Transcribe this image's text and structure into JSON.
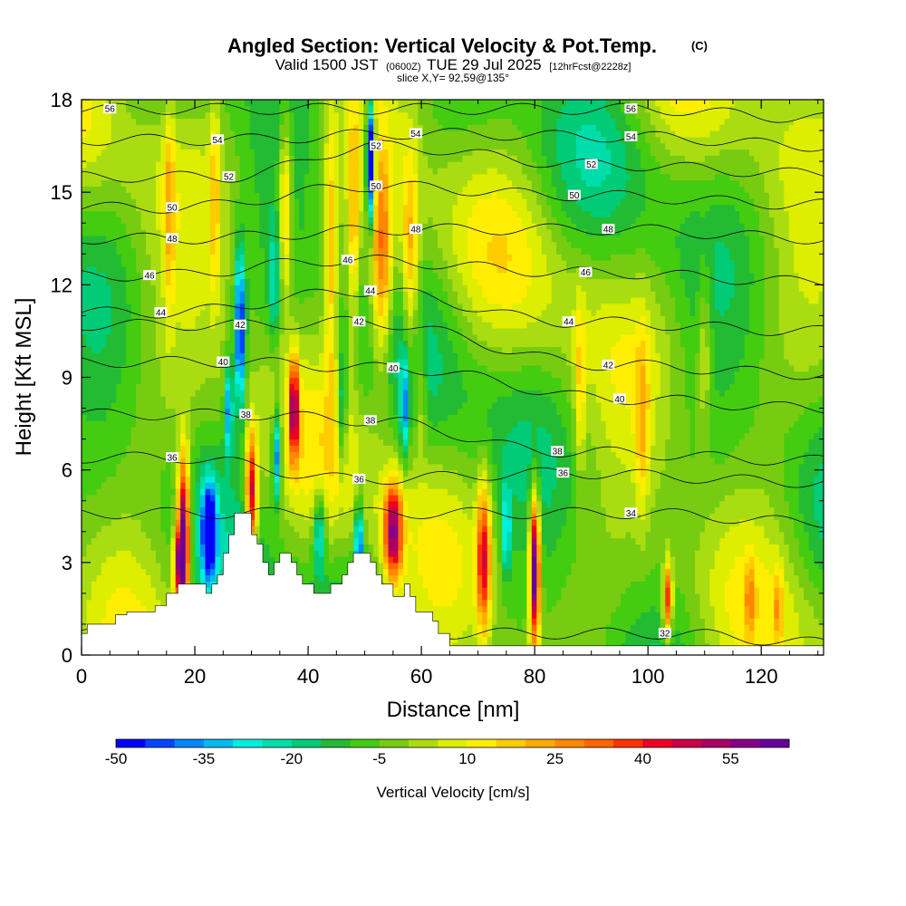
{
  "chart_data": {
    "type": "heatmap",
    "title": "Angled Section: Vertical Velocity & Pot.Temp.",
    "title_units": "(C)",
    "subtitle": {
      "prefix": "Valid 1500 JST",
      "zulu": "(0600Z)",
      "date": "TUE 29 Jul 2025",
      "forecast": "[12hrFcst@2228z]"
    },
    "slice_label": "slice X,Y= 92,59@135°",
    "xlabel": "Distance [nm]",
    "ylabel": "Height [Kft MSL]",
    "xlim": [
      0,
      131
    ],
    "ylim": [
      0,
      18
    ],
    "x_ticks": [
      "0",
      "20",
      "40",
      "60",
      "80",
      "100",
      "120"
    ],
    "y_ticks": [
      "0",
      "3",
      "6",
      "9",
      "12",
      "15",
      "18"
    ],
    "colorbar": {
      "title": "Vertical Velocity [cm/s]",
      "min": -50,
      "max": 65,
      "step": 5,
      "labels": [
        "-50",
        "-35",
        "-20",
        "-5",
        "10",
        "25",
        "40",
        "55"
      ],
      "colors": [
        "#0000ff",
        "#0044ff",
        "#0088ff",
        "#00bbee",
        "#00eedd",
        "#00ddaa",
        "#00cc77",
        "#22bb33",
        "#44cc11",
        "#77cc11",
        "#aadd11",
        "#ddee00",
        "#ffee00",
        "#ffcc00",
        "#ffaa00",
        "#ff8800",
        "#ff6600",
        "#ff3300",
        "#ee0022",
        "#cc0044",
        "#aa0066",
        "#880088",
        "#660099"
      ]
    },
    "contours": {
      "variable": "Potential temperature (C)",
      "labels": [
        {
          "x": 5,
          "y": 17.7,
          "text": "56"
        },
        {
          "x": 97,
          "y": 17.7,
          "text": "56"
        },
        {
          "x": 24,
          "y": 16.7,
          "text": "54"
        },
        {
          "x": 59,
          "y": 16.9,
          "text": "54"
        },
        {
          "x": 97,
          "y": 16.8,
          "text": "54"
        },
        {
          "x": 52,
          "y": 16.5,
          "text": "52"
        },
        {
          "x": 26,
          "y": 15.5,
          "text": "52"
        },
        {
          "x": 90,
          "y": 15.9,
          "text": "52"
        },
        {
          "x": 52,
          "y": 15.2,
          "text": "50"
        },
        {
          "x": 16,
          "y": 14.5,
          "text": "50"
        },
        {
          "x": 87,
          "y": 14.9,
          "text": "50"
        },
        {
          "x": 59,
          "y": 13.8,
          "text": "48"
        },
        {
          "x": 16,
          "y": 13.5,
          "text": "48"
        },
        {
          "x": 93,
          "y": 13.8,
          "text": "48"
        },
        {
          "x": 47,
          "y": 12.8,
          "text": "46"
        },
        {
          "x": 12,
          "y": 12.3,
          "text": "46"
        },
        {
          "x": 89,
          "y": 12.4,
          "text": "46"
        },
        {
          "x": 51,
          "y": 11.8,
          "text": "44"
        },
        {
          "x": 14,
          "y": 11.1,
          "text": "44"
        },
        {
          "x": 86,
          "y": 10.8,
          "text": "44"
        },
        {
          "x": 28,
          "y": 10.7,
          "text": "42"
        },
        {
          "x": 49,
          "y": 10.8,
          "text": "42"
        },
        {
          "x": 93,
          "y": 9.4,
          "text": "42"
        },
        {
          "x": 25,
          "y": 9.5,
          "text": "40"
        },
        {
          "x": 55,
          "y": 9.3,
          "text": "40"
        },
        {
          "x": 95,
          "y": 8.3,
          "text": "40"
        },
        {
          "x": 29,
          "y": 7.8,
          "text": "38"
        },
        {
          "x": 51,
          "y": 7.6,
          "text": "38"
        },
        {
          "x": 84,
          "y": 6.6,
          "text": "38"
        },
        {
          "x": 16,
          "y": 6.4,
          "text": "36"
        },
        {
          "x": 49,
          "y": 5.7,
          "text": "36"
        },
        {
          "x": 85,
          "y": 5.9,
          "text": "36"
        },
        {
          "x": 97,
          "y": 4.6,
          "text": "34"
        },
        {
          "x": 103,
          "y": 0.7,
          "text": "32"
        }
      ]
    },
    "terrain_profile": [
      [
        0,
        0.7
      ],
      [
        1,
        0.7
      ],
      [
        1,
        1.0
      ],
      [
        6,
        1.0
      ],
      [
        6,
        1.3
      ],
      [
        8,
        1.3
      ],
      [
        8,
        1.4
      ],
      [
        13,
        1.4
      ],
      [
        13,
        1.6
      ],
      [
        15,
        1.6
      ],
      [
        15,
        2.0
      ],
      [
        17,
        2.0
      ],
      [
        17,
        2.3
      ],
      [
        22,
        2.3
      ],
      [
        22,
        2.0
      ],
      [
        23,
        2.0
      ],
      [
        23,
        2.3
      ],
      [
        24,
        2.3
      ],
      [
        24,
        2.6
      ],
      [
        25,
        2.6
      ],
      [
        25,
        3.3
      ],
      [
        26,
        3.3
      ],
      [
        26,
        3.9
      ],
      [
        27,
        3.9
      ],
      [
        27,
        4.6
      ],
      [
        30,
        4.6
      ],
      [
        30,
        3.9
      ],
      [
        31,
        3.9
      ],
      [
        31,
        3.6
      ],
      [
        32,
        3.6
      ],
      [
        32,
        3.0
      ],
      [
        33,
        3.0
      ],
      [
        33,
        2.6
      ],
      [
        34,
        2.6
      ],
      [
        34,
        3.0
      ],
      [
        35,
        3.0
      ],
      [
        35,
        3.3
      ],
      [
        37,
        3.3
      ],
      [
        37,
        3.0
      ],
      [
        38,
        3.0
      ],
      [
        38,
        2.6
      ],
      [
        39,
        2.6
      ],
      [
        39,
        2.3
      ],
      [
        41,
        2.3
      ],
      [
        41,
        2.0
      ],
      [
        44,
        2.0
      ],
      [
        44,
        2.3
      ],
      [
        46,
        2.3
      ],
      [
        46,
        2.6
      ],
      [
        47,
        2.6
      ],
      [
        47,
        3.0
      ],
      [
        48,
        3.0
      ],
      [
        48,
        3.3
      ],
      [
        51,
        3.3
      ],
      [
        51,
        3.0
      ],
      [
        52,
        3.0
      ],
      [
        52,
        2.6
      ],
      [
        53,
        2.6
      ],
      [
        53,
        2.3
      ],
      [
        55,
        2.3
      ],
      [
        55,
        1.9
      ],
      [
        57,
        1.9
      ],
      [
        57,
        2.3
      ],
      [
        58,
        2.3
      ],
      [
        58,
        1.9
      ],
      [
        59,
        1.9
      ],
      [
        59,
        1.4
      ],
      [
        62,
        1.4
      ],
      [
        62,
        1.1
      ],
      [
        63,
        1.1
      ],
      [
        63,
        0.7
      ],
      [
        65,
        0.7
      ],
      [
        65,
        0.3
      ],
      [
        131,
        0.3
      ]
    ]
  }
}
